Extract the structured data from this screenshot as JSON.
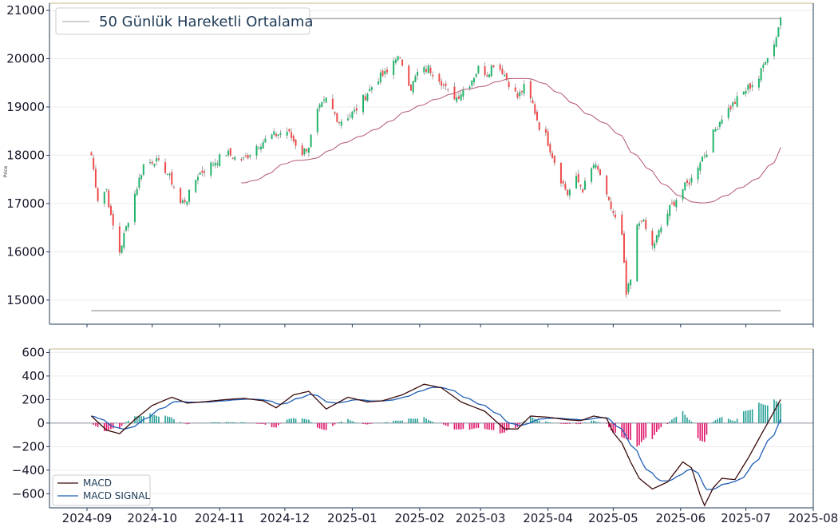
{
  "chart_data": [
    {
      "type": "candlestick",
      "ylabel": "Price",
      "ylim": [
        14500,
        21150
      ],
      "y_ticks": [
        15000,
        16000,
        17000,
        18000,
        19000,
        20000,
        21000
      ],
      "legend": {
        "label": "50 Günlük Hareketli Ortalama",
        "placement": "top-left"
      },
      "grid": true,
      "reference_lines": {
        "max": 20830,
        "min": 14780
      },
      "start_date": "2024-09-03",
      "end_date": "2025-07-17",
      "close_checkpoints": [
        [
          "2024-09-03",
          18000
        ],
        [
          "2024-09-06",
          17100
        ],
        [
          "2024-09-10",
          17300
        ],
        [
          "2024-09-12",
          16700
        ],
        [
          "2024-09-16",
          16000
        ],
        [
          "2024-09-19",
          16500
        ],
        [
          "2024-09-23",
          17200
        ],
        [
          "2024-09-27",
          17800
        ],
        [
          "2024-10-02",
          17900
        ],
        [
          "2024-10-07",
          17700
        ],
        [
          "2024-10-10",
          17450
        ],
        [
          "2024-10-14",
          17000
        ],
        [
          "2024-10-17",
          17100
        ],
        [
          "2024-10-22",
          17600
        ],
        [
          "2024-10-28",
          17800
        ],
        [
          "2024-11-04",
          18050
        ],
        [
          "2024-11-08",
          17950
        ],
        [
          "2024-11-12",
          17900
        ],
        [
          "2024-11-18",
          18200
        ],
        [
          "2024-11-25",
          18400
        ],
        [
          "2024-12-02",
          18500
        ],
        [
          "2024-12-05",
          18300
        ],
        [
          "2024-12-09",
          18050
        ],
        [
          "2024-12-12",
          18200
        ],
        [
          "2024-12-16",
          18900
        ],
        [
          "2024-12-20",
          19150
        ],
        [
          "2024-12-26",
          18700
        ],
        [
          "2025-01-02",
          18900
        ],
        [
          "2025-01-08",
          19300
        ],
        [
          "2025-01-13",
          19600
        ],
        [
          "2025-01-17",
          19700
        ],
        [
          "2025-01-21",
          20050
        ],
        [
          "2025-01-24",
          19900
        ],
        [
          "2025-01-28",
          19400
        ],
        [
          "2025-01-31",
          19700
        ],
        [
          "2025-02-05",
          19800
        ],
        [
          "2025-02-10",
          19600
        ],
        [
          "2025-02-14",
          19300
        ],
        [
          "2025-02-18",
          19200
        ],
        [
          "2025-02-24",
          19500
        ],
        [
          "2025-02-28",
          19800
        ],
        [
          "2025-03-04",
          19700
        ],
        [
          "2025-03-07",
          19900
        ],
        [
          "2025-03-11",
          19750
        ],
        [
          "2025-03-14",
          19500
        ],
        [
          "2025-03-18",
          19200
        ],
        [
          "2025-03-21",
          19400
        ],
        [
          "2025-03-25",
          19050
        ],
        [
          "2025-03-28",
          18600
        ],
        [
          "2025-03-31",
          18400
        ],
        [
          "2025-04-03",
          18000
        ],
        [
          "2025-04-07",
          17500
        ],
        [
          "2025-04-10",
          17200
        ],
        [
          "2025-04-14",
          17500
        ],
        [
          "2025-04-17",
          17300
        ],
        [
          "2025-04-22",
          17800
        ],
        [
          "2025-04-25",
          17600
        ],
        [
          "2025-04-28",
          17100
        ],
        [
          "2025-05-01",
          16800
        ],
        [
          "2025-05-05",
          16300
        ],
        [
          "2025-05-07",
          15100
        ],
        [
          "2025-05-09",
          15400
        ],
        [
          "2025-05-12",
          16500
        ],
        [
          "2025-05-14",
          16700
        ],
        [
          "2025-05-19",
          16100
        ],
        [
          "2025-05-22",
          16400
        ],
        [
          "2025-05-27",
          16900
        ],
        [
          "2025-06-02",
          17300
        ],
        [
          "2025-06-06",
          17500
        ],
        [
          "2025-06-10",
          17900
        ],
        [
          "2025-06-13",
          18100
        ],
        [
          "2025-06-16",
          18450
        ],
        [
          "2025-06-20",
          18800
        ],
        [
          "2025-06-26",
          19100
        ],
        [
          "2025-07-02",
          19400
        ],
        [
          "2025-07-07",
          19600
        ],
        [
          "2025-07-10",
          20000
        ],
        [
          "2025-07-14",
          20300
        ],
        [
          "2025-07-17",
          20850
        ]
      ]
    },
    {
      "type": "line+bar",
      "ylim": [
        -720,
        630
      ],
      "y_ticks": [
        -600,
        -400,
        -200,
        0,
        200,
        400,
        600
      ],
      "x_ticks": [
        "2024-09",
        "2024-10",
        "2024-11",
        "2024-12",
        "2025-01",
        "2025-02",
        "2025-03",
        "2025-04",
        "2025-05",
        "2025-06",
        "2025-07",
        "2025-08"
      ],
      "series": [
        {
          "name": "MACD",
          "color": "#3b0a0a"
        },
        {
          "name": "MACD SIGNAL",
          "color": "#1f5fb5"
        }
      ],
      "histogram_colors": {
        "positive": "#2aa198",
        "negative": "#e0186c"
      },
      "legend": {
        "placement": "bottom-left"
      },
      "grid": true,
      "macd_checkpoints": [
        [
          "2024-09-03",
          60
        ],
        [
          "2024-09-10",
          -60
        ],
        [
          "2024-09-16",
          -90
        ],
        [
          "2024-09-23",
          30
        ],
        [
          "2024-10-01",
          150
        ],
        [
          "2024-10-10",
          220
        ],
        [
          "2024-10-17",
          170
        ],
        [
          "2024-10-24",
          180
        ],
        [
          "2024-11-04",
          200
        ],
        [
          "2024-11-12",
          210
        ],
        [
          "2024-11-21",
          190
        ],
        [
          "2024-11-27",
          130
        ],
        [
          "2024-12-05",
          240
        ],
        [
          "2024-12-12",
          270
        ],
        [
          "2024-12-20",
          120
        ],
        [
          "2024-12-30",
          220
        ],
        [
          "2025-01-08",
          180
        ],
        [
          "2025-01-15",
          190
        ],
        [
          "2025-01-24",
          240
        ],
        [
          "2025-02-03",
          330
        ],
        [
          "2025-02-11",
          300
        ],
        [
          "2025-02-20",
          180
        ],
        [
          "2025-03-03",
          100
        ],
        [
          "2025-03-12",
          -50
        ],
        [
          "2025-03-18",
          -50
        ],
        [
          "2025-03-24",
          60
        ],
        [
          "2025-04-01",
          50
        ],
        [
          "2025-04-09",
          30
        ],
        [
          "2025-04-16",
          20
        ],
        [
          "2025-04-22",
          60
        ],
        [
          "2025-04-28",
          40
        ],
        [
          "2025-05-01",
          -80
        ],
        [
          "2025-05-05",
          -170
        ],
        [
          "2025-05-09",
          -330
        ],
        [
          "2025-05-13",
          -470
        ],
        [
          "2025-05-19",
          -560
        ],
        [
          "2025-05-26",
          -500
        ],
        [
          "2025-06-02",
          -330
        ],
        [
          "2025-06-06",
          -380
        ],
        [
          "2025-06-10",
          -610
        ],
        [
          "2025-06-12",
          -700
        ],
        [
          "2025-06-16",
          -550
        ],
        [
          "2025-06-20",
          -470
        ],
        [
          "2025-06-26",
          -480
        ],
        [
          "2025-07-02",
          -300
        ],
        [
          "2025-07-08",
          -100
        ],
        [
          "2025-07-14",
          100
        ],
        [
          "2025-07-17",
          200
        ]
      ]
    }
  ]
}
